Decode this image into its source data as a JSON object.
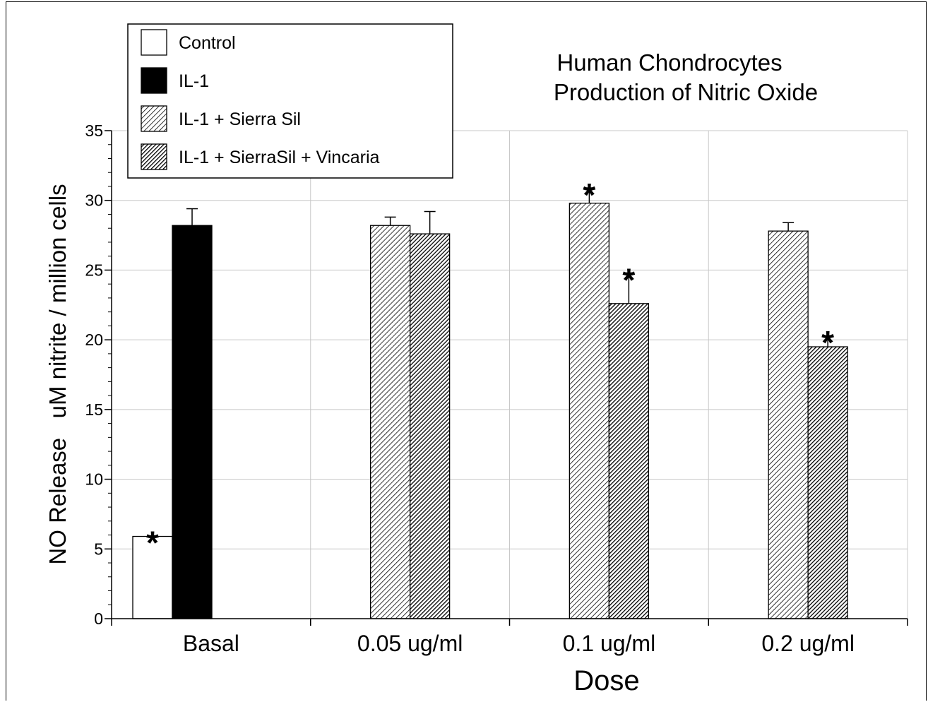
{
  "chart_data": {
    "type": "bar",
    "title": [
      "Human Chondrocytes",
      "Production of Nitric Oxide"
    ],
    "xlabel": "Dose",
    "ylabel": "NO Release   uM nitrite / million cells",
    "ylim": [
      0,
      35
    ],
    "yticks": [
      "0",
      "5",
      "10",
      "15",
      "20",
      "25",
      "30",
      "35"
    ],
    "grid": true,
    "legend_position": "top-left",
    "categories": [
      "Basal",
      "0.05 ug/ml",
      "0.1 ug/ml",
      "0.2 ug/ml"
    ],
    "series": [
      {
        "name": "Control",
        "fill": "white",
        "color": "#ffffff",
        "values": [
          5.9,
          null,
          null,
          null
        ],
        "errors": [
          0.05,
          null,
          null,
          null
        ],
        "significant": [
          true,
          false,
          false,
          false
        ]
      },
      {
        "name": "IL-1",
        "fill": "solid",
        "color": "#000000",
        "values": [
          28.2,
          null,
          null,
          null
        ],
        "errors": [
          1.2,
          null,
          null,
          null
        ],
        "significant": [
          false,
          false,
          false,
          false
        ]
      },
      {
        "name": "IL-1 + Sierra Sil",
        "fill": "light-hatch",
        "color": "#d8d8d8",
        "values": [
          null,
          28.2,
          29.8,
          27.8
        ],
        "errors": [
          null,
          0.6,
          1.1,
          0.6
        ],
        "significant": [
          false,
          false,
          true,
          false
        ]
      },
      {
        "name": "IL-1 + SierraSil + Vincaria",
        "fill": "dark-hatch",
        "color": "#a0a0a0",
        "values": [
          null,
          27.6,
          22.6,
          19.5
        ],
        "errors": [
          null,
          1.6,
          2.2,
          0.8
        ],
        "significant": [
          false,
          false,
          true,
          true
        ]
      }
    ],
    "significance_marker": "*"
  }
}
